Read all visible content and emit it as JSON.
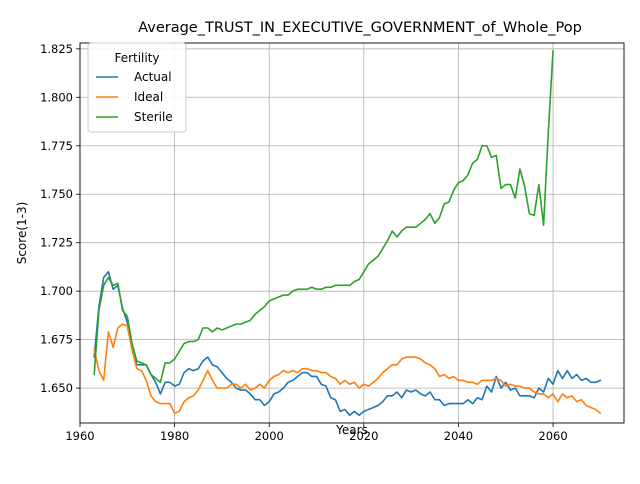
{
  "chart_data": {
    "type": "line",
    "title": "Average_TRUST_IN_EXECUTIVE_GOVERNMENT_of_Whole_Pop",
    "xlabel": "Years",
    "ylabel": "Score(1-3)",
    "xlim": [
      1960,
      2075
    ],
    "ylim": [
      1.632,
      1.828
    ],
    "xticks": [
      1960,
      1980,
      2000,
      2020,
      2040,
      2060
    ],
    "yticks": [
      1.65,
      1.675,
      1.7,
      1.725,
      1.75,
      1.775,
      1.8,
      1.825
    ],
    "ytick_labels": [
      "1.650",
      "1.675",
      "1.700",
      "1.725",
      "1.750",
      "1.775",
      "1.800",
      "1.825"
    ],
    "grid": true,
    "legend": {
      "title": "Fertility",
      "placement": "top-left"
    },
    "series": [
      {
        "name": "Actual",
        "color": "#1f77b4",
        "x": [
          1963,
          1964,
          1965,
          1966,
          1967,
          1968,
          1969,
          1970,
          1971,
          1972,
          1973,
          1974,
          1975,
          1976,
          1977,
          1978,
          1979,
          1980,
          1981,
          1982,
          1983,
          1984,
          1985,
          1986,
          1987,
          1988,
          1989,
          1990,
          1991,
          1992,
          1993,
          1994,
          1995,
          1996,
          1997,
          1998,
          1999,
          2000,
          2001,
          2002,
          2003,
          2004,
          2005,
          2006,
          2007,
          2008,
          2009,
          2010,
          2011,
          2012,
          2013,
          2014,
          2015,
          2016,
          2017,
          2018,
          2019,
          2020,
          2021,
          2022,
          2023,
          2024,
          2025,
          2026,
          2027,
          2028,
          2029,
          2030,
          2031,
          2032,
          2033,
          2034,
          2035,
          2036,
          2037,
          2038,
          2039,
          2040,
          2041,
          2042,
          2043,
          2044,
          2045,
          2046,
          2047,
          2048,
          2049,
          2050,
          2051,
          2052,
          2053,
          2054,
          2055,
          2056,
          2057,
          2058,
          2059,
          2060,
          2061,
          2062,
          2063,
          2064,
          2065,
          2066,
          2067,
          2068,
          2069,
          2070
        ],
        "values": [
          1.666,
          1.692,
          1.707,
          1.71,
          1.701,
          1.703,
          1.691,
          1.684,
          1.67,
          1.662,
          1.662,
          1.662,
          1.657,
          1.653,
          1.647,
          1.653,
          1.653,
          1.651,
          1.652,
          1.658,
          1.66,
          1.659,
          1.66,
          1.664,
          1.666,
          1.662,
          1.661,
          1.658,
          1.655,
          1.653,
          1.65,
          1.649,
          1.649,
          1.647,
          1.644,
          1.644,
          1.641,
          1.643,
          1.647,
          1.648,
          1.65,
          1.653,
          1.654,
          1.656,
          1.658,
          1.658,
          1.656,
          1.656,
          1.652,
          1.651,
          1.645,
          1.644,
          1.638,
          1.639,
          1.636,
          1.638,
          1.636,
          1.638,
          1.639,
          1.64,
          1.641,
          1.643,
          1.646,
          1.646,
          1.648,
          1.645,
          1.649,
          1.648,
          1.649,
          1.647,
          1.646,
          1.648,
          1.644,
          1.644,
          1.641,
          1.642,
          1.642,
          1.642,
          1.642,
          1.644,
          1.642,
          1.645,
          1.644,
          1.651,
          1.648,
          1.656,
          1.65,
          1.653,
          1.649,
          1.65,
          1.646,
          1.646,
          1.646,
          1.645,
          1.65,
          1.648,
          1.655,
          1.652,
          1.659,
          1.655,
          1.659,
          1.655,
          1.657,
          1.654,
          1.655,
          1.653,
          1.653,
          1.654
        ]
      },
      {
        "name": "Ideal",
        "color": "#ff7f0e",
        "x": [
          1963,
          1964,
          1965,
          1966,
          1967,
          1968,
          1969,
          1970,
          1971,
          1972,
          1973,
          1974,
          1975,
          1976,
          1977,
          1978,
          1979,
          1980,
          1981,
          1982,
          1983,
          1984,
          1985,
          1986,
          1987,
          1988,
          1989,
          1990,
          1991,
          1992,
          1993,
          1994,
          1995,
          1996,
          1997,
          1998,
          1999,
          2000,
          2001,
          2002,
          2003,
          2004,
          2005,
          2006,
          2007,
          2008,
          2009,
          2010,
          2011,
          2012,
          2013,
          2014,
          2015,
          2016,
          2017,
          2018,
          2019,
          2020,
          2021,
          2022,
          2023,
          2024,
          2025,
          2026,
          2027,
          2028,
          2029,
          2030,
          2031,
          2032,
          2033,
          2034,
          2035,
          2036,
          2037,
          2038,
          2039,
          2040,
          2041,
          2042,
          2043,
          2044,
          2045,
          2046,
          2047,
          2048,
          2049,
          2050,
          2051,
          2052,
          2053,
          2054,
          2055,
          2056,
          2057,
          2058,
          2059,
          2060,
          2061,
          2062,
          2063,
          2064,
          2065,
          2066,
          2067,
          2068,
          2069,
          2070
        ],
        "values": [
          1.67,
          1.659,
          1.654,
          1.679,
          1.671,
          1.681,
          1.683,
          1.682,
          1.67,
          1.66,
          1.659,
          1.654,
          1.646,
          1.643,
          1.642,
          1.642,
          1.642,
          1.637,
          1.638,
          1.643,
          1.645,
          1.646,
          1.649,
          1.654,
          1.659,
          1.654,
          1.65,
          1.65,
          1.65,
          1.652,
          1.652,
          1.65,
          1.652,
          1.649,
          1.65,
          1.652,
          1.65,
          1.654,
          1.656,
          1.657,
          1.659,
          1.658,
          1.659,
          1.658,
          1.66,
          1.66,
          1.659,
          1.659,
          1.658,
          1.658,
          1.656,
          1.655,
          1.652,
          1.654,
          1.652,
          1.653,
          1.65,
          1.652,
          1.651,
          1.653,
          1.655,
          1.658,
          1.66,
          1.662,
          1.662,
          1.665,
          1.666,
          1.666,
          1.666,
          1.665,
          1.663,
          1.662,
          1.66,
          1.656,
          1.657,
          1.655,
          1.656,
          1.654,
          1.654,
          1.653,
          1.653,
          1.652,
          1.654,
          1.654,
          1.654,
          1.655,
          1.654,
          1.651,
          1.652,
          1.651,
          1.651,
          1.65,
          1.65,
          1.648,
          1.647,
          1.647,
          1.645,
          1.647,
          1.643,
          1.647,
          1.645,
          1.646,
          1.643,
          1.644,
          1.641,
          1.64,
          1.639,
          1.637
        ]
      },
      {
        "name": "Sterile",
        "color": "#2ca02c",
        "x": [
          1963,
          1964,
          1965,
          1966,
          1967,
          1968,
          1969,
          1970,
          1971,
          1972,
          1973,
          1974,
          1975,
          1976,
          1977,
          1978,
          1979,
          1980,
          1981,
          1982,
          1983,
          1984,
          1985,
          1986,
          1987,
          1988,
          1989,
          1990,
          1991,
          1992,
          1993,
          1994,
          1995,
          1996,
          1997,
          1998,
          1999,
          2000,
          2001,
          2002,
          2003,
          2004,
          2005,
          2006,
          2007,
          2008,
          2009,
          2010,
          2011,
          2012,
          2013,
          2014,
          2015,
          2016,
          2017,
          2018,
          2019,
          2020,
          2021,
          2022,
          2023,
          2024,
          2025,
          2026,
          2027,
          2028,
          2029,
          2030,
          2031,
          2032,
          2033,
          2034,
          2035,
          2036,
          2037,
          2038,
          2039,
          2040,
          2041,
          2042,
          2043,
          2044,
          2045,
          2046,
          2047,
          2048,
          2049,
          2050,
          2051,
          2052,
          2053,
          2054,
          2055,
          2056,
          2057,
          2058,
          2059,
          2060
        ],
        "values": [
          1.657,
          1.69,
          1.703,
          1.707,
          1.703,
          1.704,
          1.69,
          1.687,
          1.673,
          1.664,
          1.663,
          1.662,
          1.657,
          1.655,
          1.653,
          1.663,
          1.663,
          1.665,
          1.669,
          1.673,
          1.674,
          1.674,
          1.675,
          1.681,
          1.681,
          1.679,
          1.681,
          1.68,
          1.681,
          1.682,
          1.683,
          1.683,
          1.684,
          1.685,
          1.688,
          1.69,
          1.692,
          1.695,
          1.696,
          1.697,
          1.698,
          1.698,
          1.7,
          1.701,
          1.701,
          1.701,
          1.702,
          1.701,
          1.701,
          1.702,
          1.702,
          1.703,
          1.703,
          1.703,
          1.703,
          1.705,
          1.706,
          1.71,
          1.714,
          1.716,
          1.718,
          1.722,
          1.726,
          1.731,
          1.728,
          1.731,
          1.733,
          1.733,
          1.733,
          1.735,
          1.737,
          1.74,
          1.735,
          1.738,
          1.745,
          1.746,
          1.752,
          1.756,
          1.757,
          1.76,
          1.766,
          1.768,
          1.775,
          1.775,
          1.769,
          1.77,
          1.753,
          1.755,
          1.755,
          1.748,
          1.763,
          1.754,
          1.74,
          1.739,
          1.755,
          1.734,
          1.782,
          1.824
        ]
      }
    ]
  }
}
